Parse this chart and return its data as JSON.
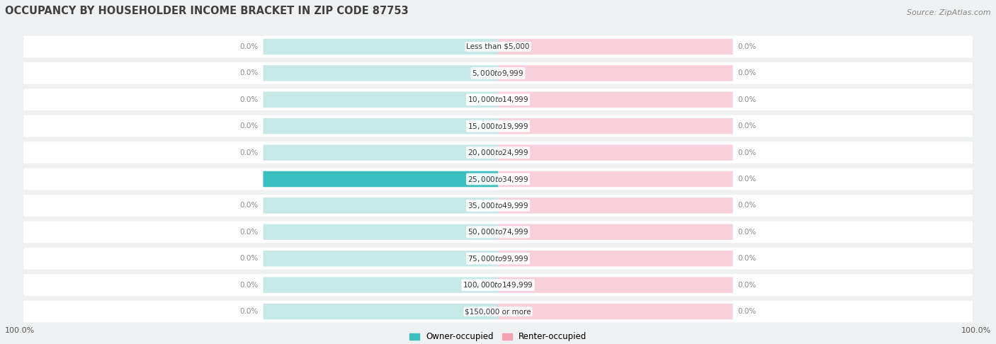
{
  "title": "OCCUPANCY BY HOUSEHOLDER INCOME BRACKET IN ZIP CODE 87753",
  "source": "Source: ZipAtlas.com",
  "categories": [
    "Less than $5,000",
    "$5,000 to $9,999",
    "$10,000 to $14,999",
    "$15,000 to $19,999",
    "$20,000 to $24,999",
    "$25,000 to $34,999",
    "$35,000 to $49,999",
    "$50,000 to $74,999",
    "$75,000 to $99,999",
    "$100,000 to $149,999",
    "$150,000 or more"
  ],
  "owner_values": [
    0.0,
    0.0,
    0.0,
    0.0,
    0.0,
    100.0,
    0.0,
    0.0,
    0.0,
    0.0,
    0.0
  ],
  "renter_values": [
    0.0,
    0.0,
    0.0,
    0.0,
    0.0,
    0.0,
    0.0,
    0.0,
    0.0,
    0.0,
    0.0
  ],
  "owner_color": "#3dbfbf",
  "renter_color": "#f4a0b0",
  "bar_bg_owner": "#c8e8e8",
  "bar_bg_renter": "#f8d0da",
  "title_color": "#404040",
  "legend_owner": "Owner-occupied",
  "legend_renter": "Renter-occupied",
  "bottom_left_label": "100.0%",
  "bottom_right_label": "100.0%"
}
